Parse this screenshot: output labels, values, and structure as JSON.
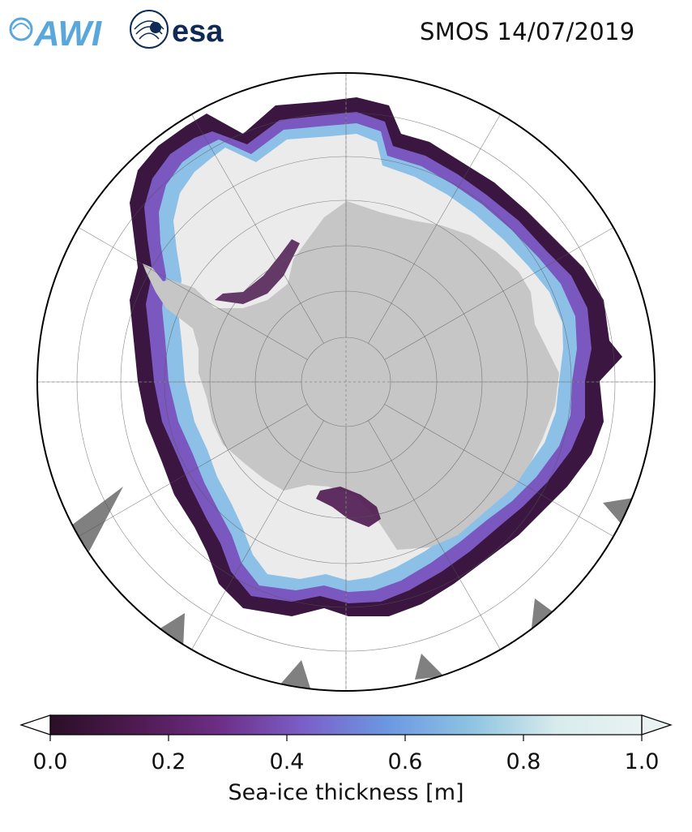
{
  "logos": {
    "awi_text": "AWI",
    "esa_text": "esa"
  },
  "title": "SMOS 14/07/2019",
  "colorbar": {
    "label": "Sea-ice thickness [m]",
    "ticks": [
      "0.0",
      "0.2",
      "0.4",
      "0.6",
      "0.8",
      "1.0"
    ],
    "tick_values": [
      0.0,
      0.2,
      0.4,
      0.6,
      0.8,
      1.0
    ],
    "range": [
      0.0,
      1.0
    ],
    "stops": [
      "#2a0f26",
      "#4e1a50",
      "#6d2e86",
      "#7b5fc8",
      "#6c98e2",
      "#8fc4e2",
      "#d8ecec",
      "#eaf2f2"
    ],
    "extend": "both"
  },
  "colors": {
    "land": "#c6c6c6",
    "thick_ice": "#ebebeb",
    "open_ocean": "#ffffff",
    "ice_shelf_gray": "#808080",
    "awi_blue": "#5aa7dc",
    "esa_navy": "#0f2a55"
  }
}
